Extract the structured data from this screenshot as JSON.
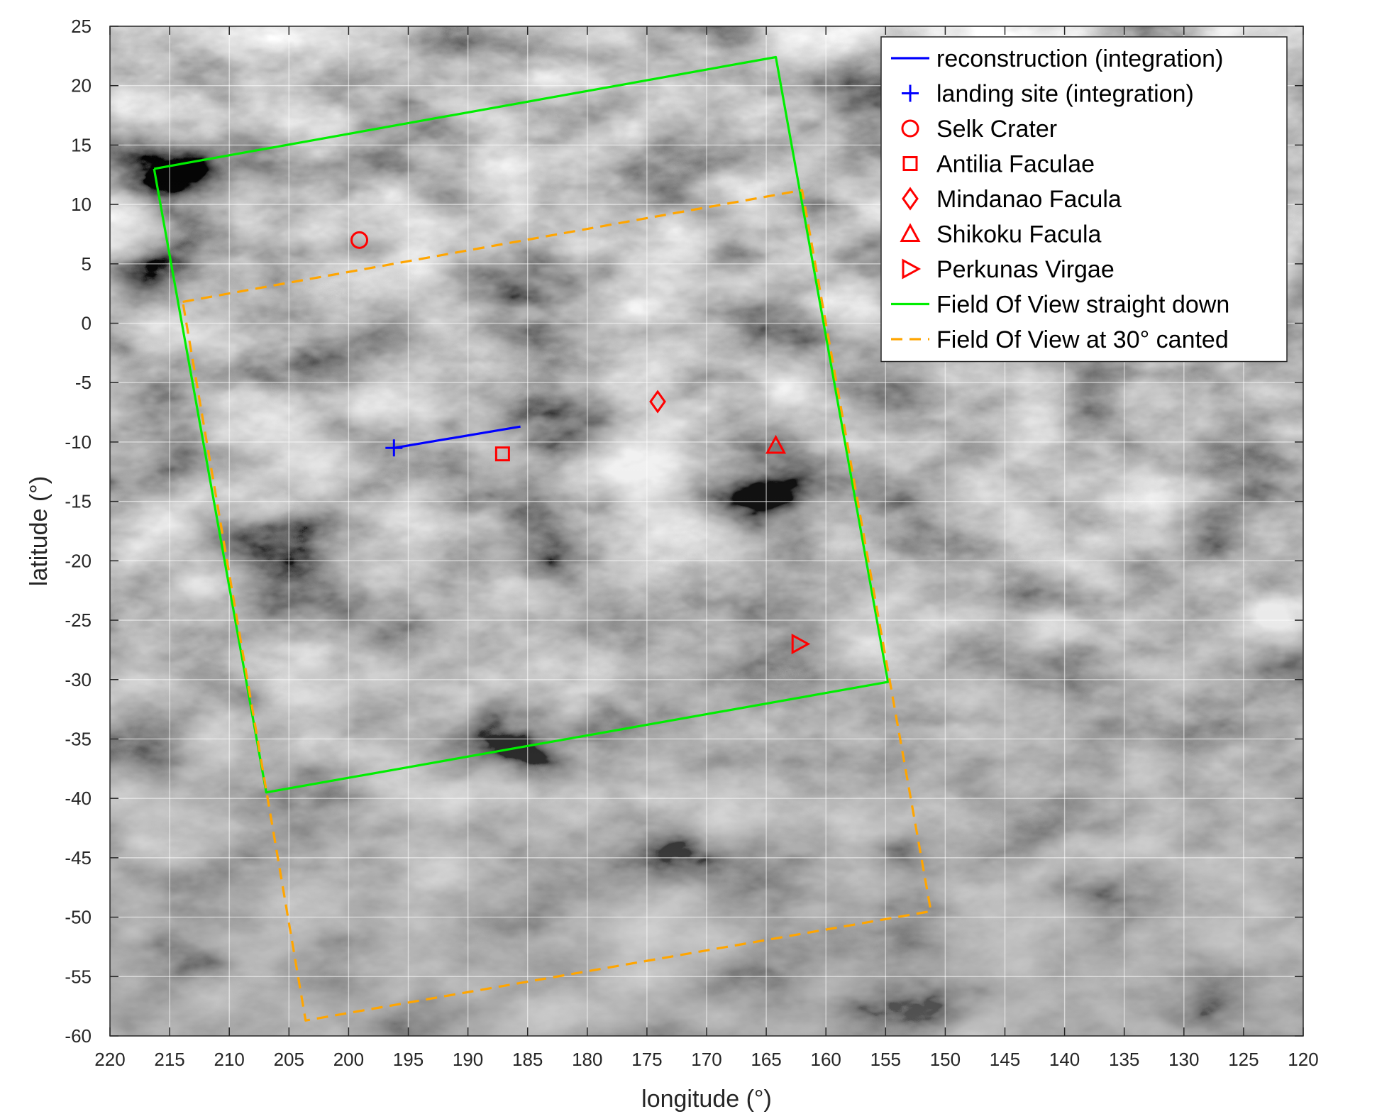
{
  "chart_data": {
    "type": "line",
    "title": "",
    "xlabel": "longitude (°)",
    "ylabel": "latitude (°)",
    "xlim": [
      220,
      120
    ],
    "ylim": [
      -60,
      25
    ],
    "x_reversed": true,
    "xticks": [
      220,
      215,
      210,
      205,
      200,
      195,
      190,
      185,
      180,
      175,
      170,
      165,
      160,
      155,
      150,
      145,
      140,
      135,
      130,
      125,
      120
    ],
    "yticks": [
      25,
      20,
      15,
      10,
      5,
      0,
      -5,
      -10,
      -15,
      -20,
      -25,
      -30,
      -35,
      -40,
      -45,
      -50,
      -55,
      -60
    ],
    "xtick_labels": [
      "220",
      "215",
      "210",
      "205",
      "200",
      "195",
      "190",
      "185",
      "180",
      "175",
      "170",
      "165",
      "160",
      "155",
      "150",
      "145",
      "140",
      "135",
      "130",
      "125",
      "120"
    ],
    "ytick_labels": [
      "25",
      "20",
      "15",
      "10",
      "5",
      "0",
      "-5",
      "-10",
      "-15",
      "-20",
      "-25",
      "-30",
      "-35",
      "-40",
      "-45",
      "-50",
      "-55",
      "-60"
    ],
    "grid": true,
    "background": "grayscale surface image",
    "legend_position": "top-right",
    "series": [
      {
        "name": "reconstruction (integration)",
        "kind": "line",
        "style": "solid",
        "color": "#0000ff",
        "x": [
          196.2,
          185.6
        ],
        "y": [
          -10.5,
          -8.7
        ]
      },
      {
        "name": "landing site (integration)",
        "kind": "marker",
        "marker": "plus",
        "color": "#0000ff",
        "x": [
          196.2
        ],
        "y": [
          -10.5
        ]
      },
      {
        "name": "Selk Crater",
        "kind": "marker",
        "marker": "circle",
        "color": "#ff0000",
        "x": [
          199.1
        ],
        "y": [
          7.0
        ]
      },
      {
        "name": "Antilia Faculae",
        "kind": "marker",
        "marker": "square",
        "color": "#ff0000",
        "x": [
          187.1
        ],
        "y": [
          -11.0
        ]
      },
      {
        "name": "Mindanao Facula",
        "kind": "marker",
        "marker": "diamond",
        "color": "#ff0000",
        "x": [
          174.1
        ],
        "y": [
          -6.6
        ]
      },
      {
        "name": "Shikoku Facula",
        "kind": "marker",
        "marker": "triangle-up",
        "color": "#ff0000",
        "x": [
          164.2
        ],
        "y": [
          -10.3
        ]
      },
      {
        "name": "Perkunas Virgae",
        "kind": "marker",
        "marker": "triangle-right",
        "color": "#ff0000",
        "x": [
          162.2
        ],
        "y": [
          -27.0
        ]
      },
      {
        "name": "Field Of View straight down",
        "kind": "line",
        "style": "solid",
        "color": "#00ee00",
        "x": [
          216.3,
          164.2,
          154.8,
          206.9,
          216.3
        ],
        "y": [
          13.0,
          22.4,
          -30.2,
          -39.5,
          13.0
        ]
      },
      {
        "name": "Field Of View at 30° canted",
        "kind": "line",
        "style": "dashed",
        "color": "#ffa500",
        "x": [
          213.9,
          162.0,
          151.2,
          203.6,
          213.9
        ],
        "y": [
          1.8,
          11.2,
          -49.5,
          -58.7,
          1.8
        ]
      }
    ]
  }
}
